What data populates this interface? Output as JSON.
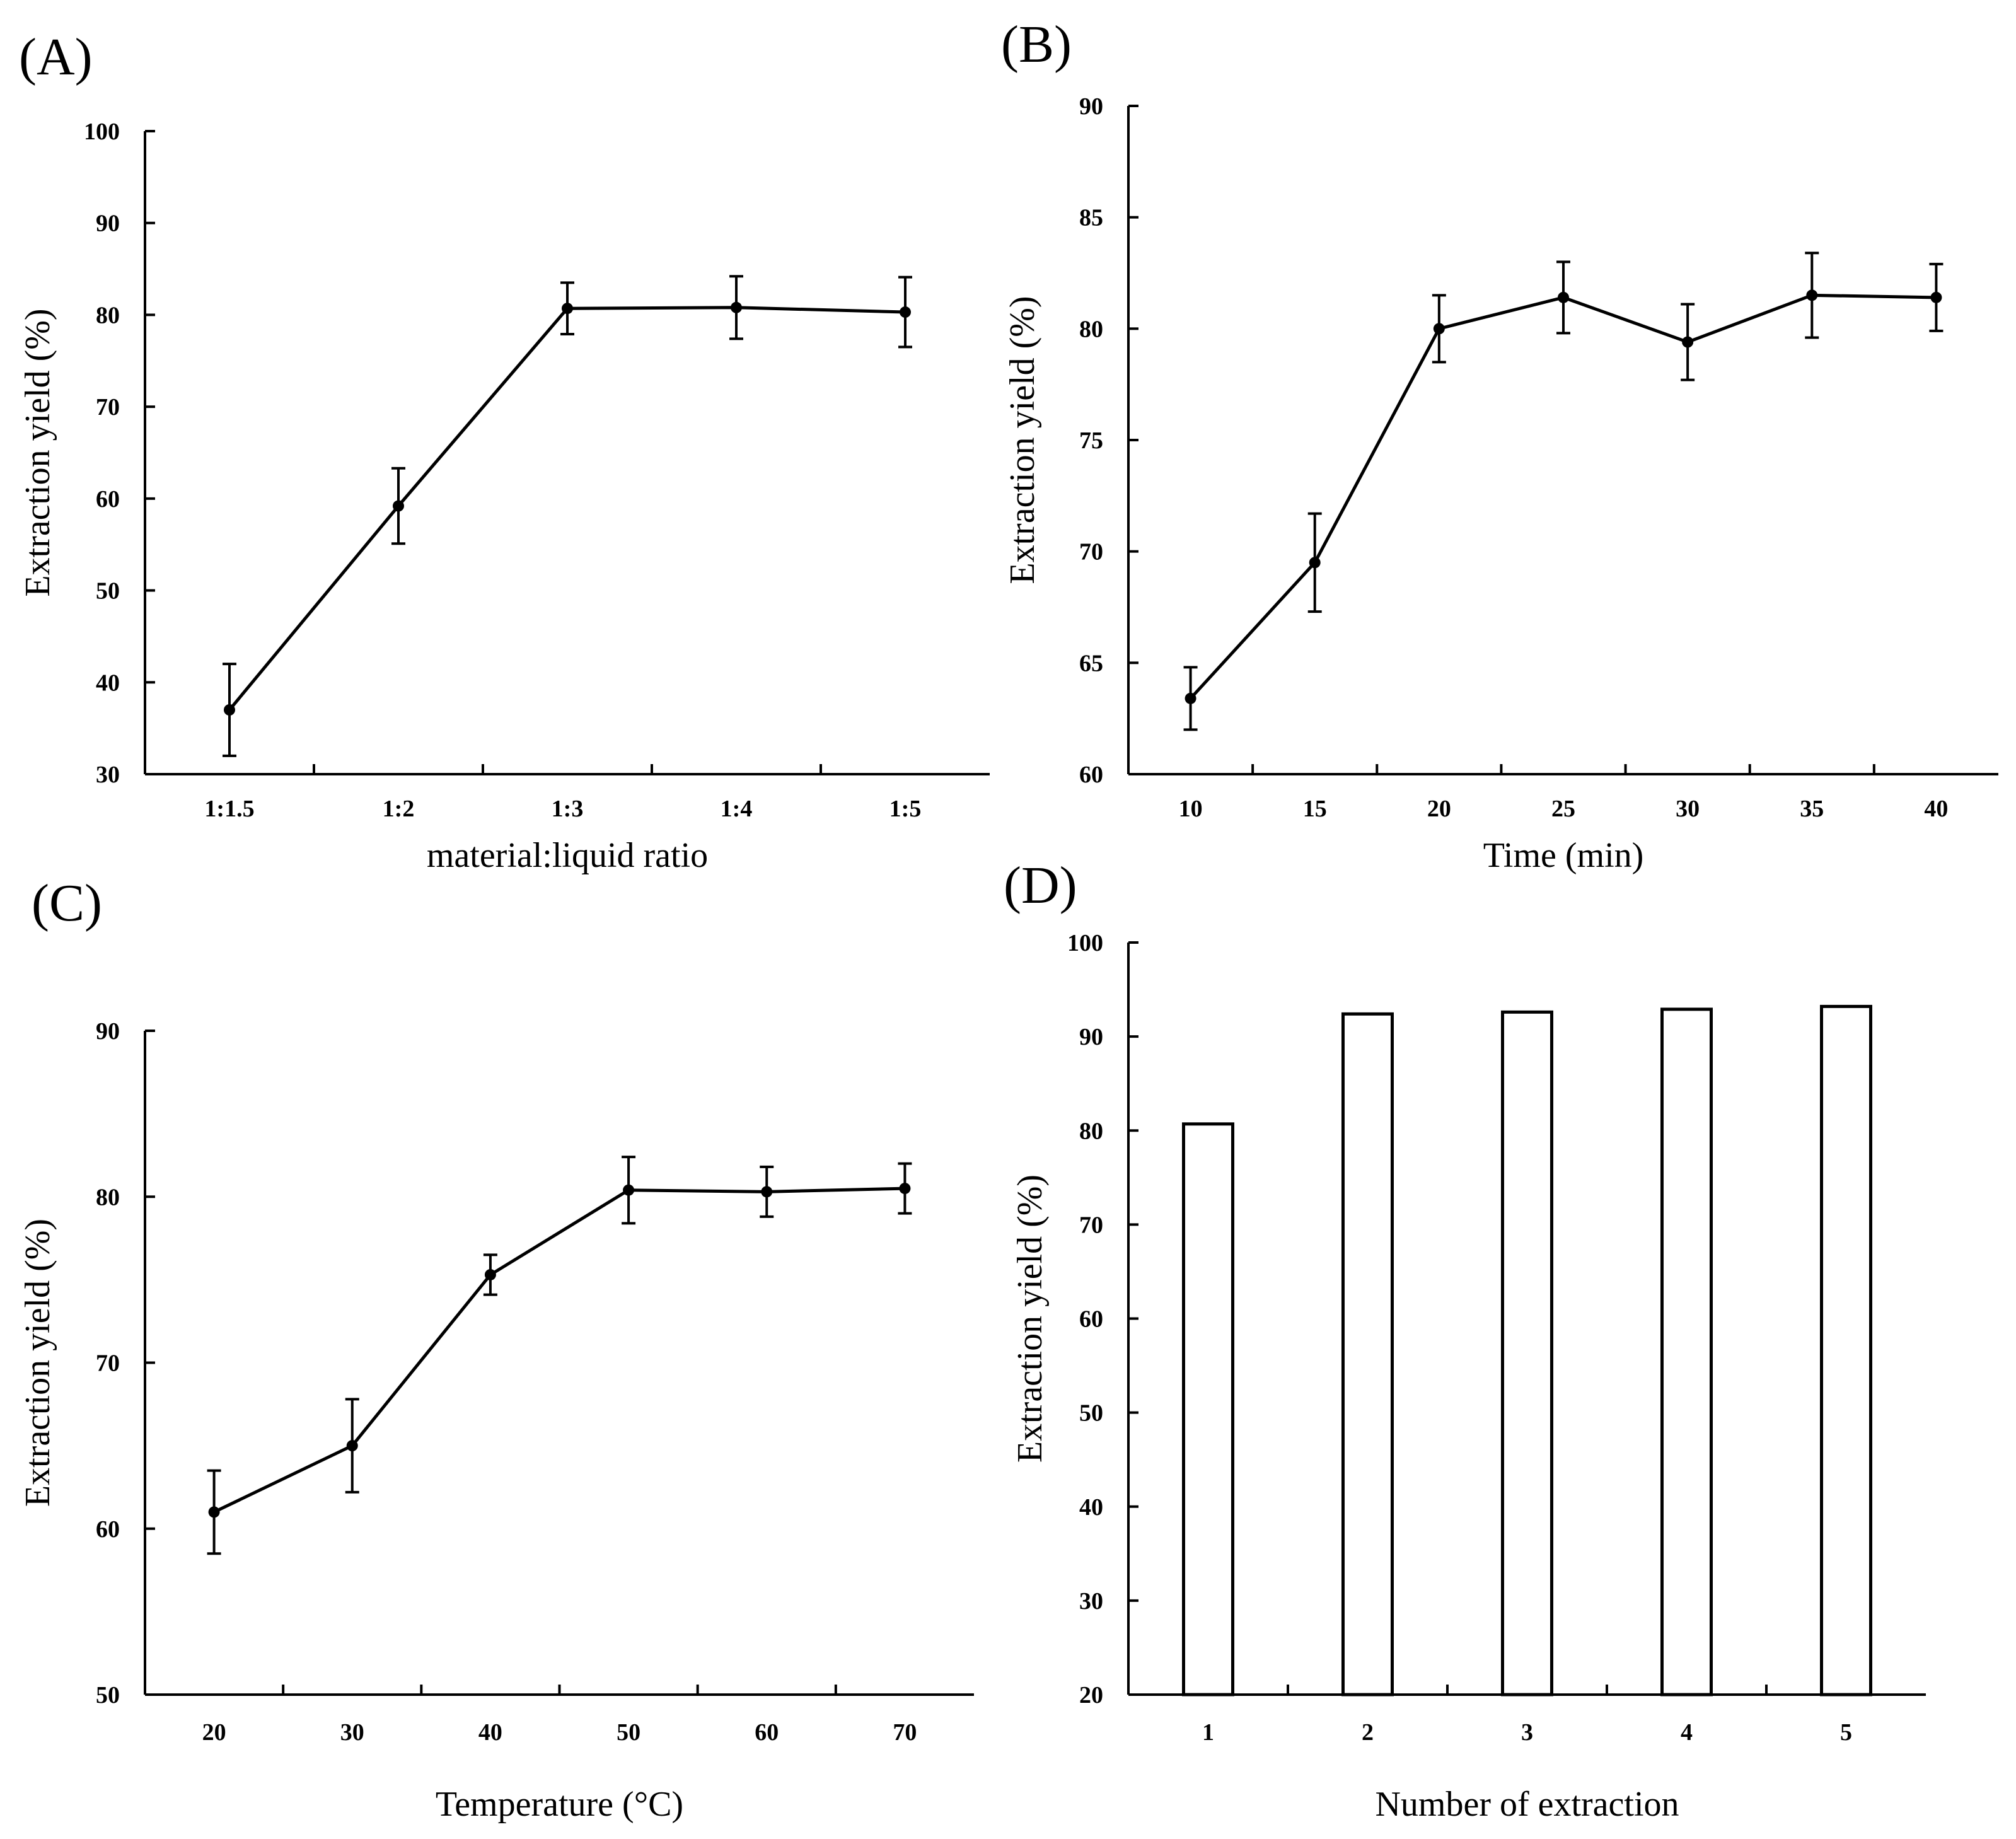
{
  "chart_data": [
    {
      "id": "A",
      "panel_label": "(A)",
      "type": "line",
      "title": "",
      "xlabel": "material:liquid ratio",
      "ylabel": "Extraction yield (%)",
      "categories": [
        "1:1.5",
        "1:2",
        "1:3",
        "1:4",
        "1:5"
      ],
      "values": [
        37.0,
        59.2,
        80.7,
        80.8,
        80.3
      ],
      "errors": [
        5.0,
        4.1,
        2.8,
        3.4,
        3.8
      ],
      "ylim": [
        30,
        100
      ],
      "yticks": [
        30,
        40,
        50,
        60,
        70,
        80,
        90,
        100
      ],
      "grid": false
    },
    {
      "id": "B",
      "panel_label": "(B)",
      "type": "line",
      "title": "",
      "xlabel": "Time (min)",
      "ylabel": "Extraction yield (%)",
      "categories": [
        "10",
        "15",
        "20",
        "25",
        "30",
        "35",
        "40"
      ],
      "values": [
        63.4,
        69.5,
        80.0,
        81.4,
        79.4,
        81.5,
        81.4
      ],
      "errors": [
        1.4,
        2.2,
        1.5,
        1.6,
        1.7,
        1.9,
        1.5
      ],
      "ylim": [
        60,
        90
      ],
      "yticks": [
        60,
        65,
        70,
        75,
        80,
        85,
        90
      ],
      "grid": false
    },
    {
      "id": "C",
      "panel_label": "(C)",
      "type": "line",
      "title": "",
      "xlabel": "Temperature (°C)",
      "ylabel": "Extraction yield (%)",
      "categories": [
        "20",
        "30",
        "40",
        "50",
        "60",
        "70"
      ],
      "values": [
        61.0,
        65.0,
        75.3,
        80.4,
        80.3,
        80.5
      ],
      "errors": [
        2.5,
        2.8,
        1.2,
        2.0,
        1.5,
        1.5
      ],
      "ylim": [
        50,
        90
      ],
      "yticks": [
        50,
        60,
        70,
        80,
        90
      ],
      "grid": false
    },
    {
      "id": "D",
      "panel_label": "(D)",
      "type": "bar",
      "title": "",
      "xlabel": "Number of extraction",
      "ylabel": "Extraction yield (%)",
      "categories": [
        "1",
        "2",
        "3",
        "4",
        "5"
      ],
      "values": [
        80.7,
        92.4,
        92.6,
        92.9,
        93.2
      ],
      "ylim": [
        20,
        100
      ],
      "yticks": [
        20,
        30,
        40,
        50,
        60,
        70,
        80,
        90,
        100
      ],
      "grid": false
    }
  ]
}
